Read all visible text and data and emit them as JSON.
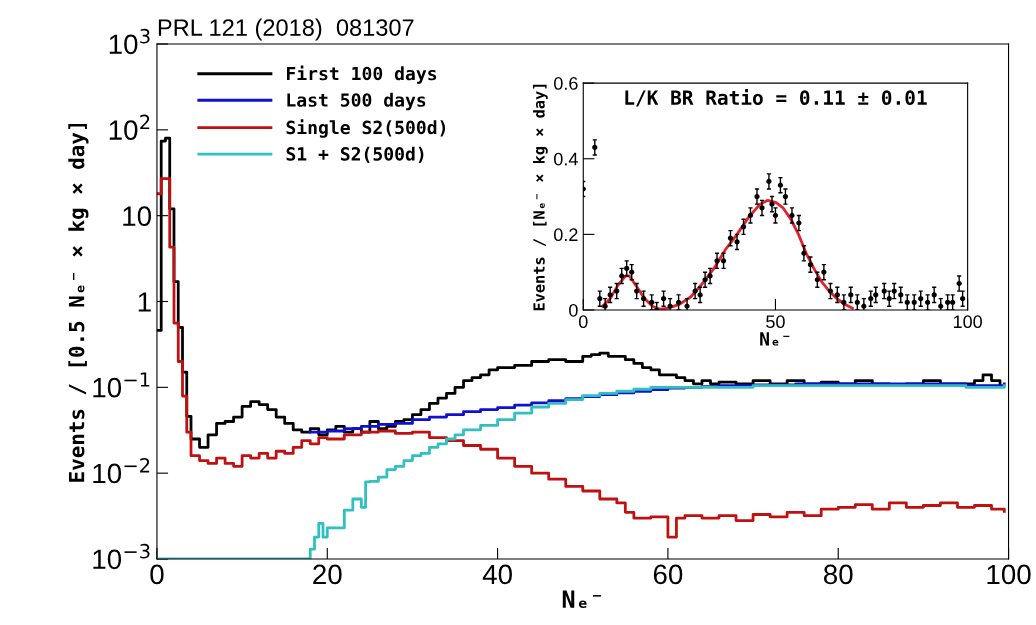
{
  "chart_data": [
    {
      "type": "step",
      "title": "PRL 121 (2018)  081307",
      "xlabel": "Nₑ⁻",
      "ylabel": "Events / [0.5 Nₑ⁻ × kg × day]",
      "log": "y",
      "legend": "top left",
      "grid": false,
      "xlim": [
        0,
        100
      ],
      "xticks": [
        0,
        20,
        40,
        60,
        80,
        100
      ],
      "ylim": [
        0.001,
        1000
      ],
      "yticks": [
        {
          "value": 0.001,
          "label": "10$^{−3}$"
        },
        {
          "value": 0.01,
          "label": "10$^{−2}$"
        },
        {
          "value": 0.1,
          "label": "10$^{−1}$"
        },
        1,
        10,
        {
          "value": 100,
          "label": "10$^{2}$"
        },
        {
          "value": 1000,
          "label": "10$^{3}$"
        }
      ],
      "series": [
        {
          "name": "First 100 days",
          "color": "#000000",
          "x": [
            0,
            0.5,
            1,
            1.5,
            2,
            2.5,
            3,
            3.5,
            4,
            5,
            6,
            7,
            8,
            9,
            10,
            11,
            12,
            13,
            14,
            15,
            16,
            17,
            18,
            19,
            20,
            21,
            22,
            23,
            24,
            25,
            26,
            27,
            28,
            29,
            30,
            31,
            32,
            33,
            34,
            35,
            36,
            37,
            38,
            39,
            40,
            42,
            44,
            46,
            48,
            50,
            51,
            52,
            53,
            54,
            55,
            56,
            57,
            58,
            59,
            60,
            61,
            62,
            63,
            64,
            65,
            66,
            68,
            70,
            72,
            74,
            76,
            78,
            80,
            82,
            84,
            86,
            88,
            90,
            92,
            94,
            96,
            97,
            98,
            99
          ],
          "values": [
            0.46,
            74,
            80,
            12,
            1.7,
            0.5,
            0.15,
            0.046,
            0.025,
            0.02,
            0.028,
            0.038,
            0.04,
            0.045,
            0.06,
            0.068,
            0.063,
            0.055,
            0.045,
            0.038,
            0.032,
            0.03,
            0.033,
            0.028,
            0.032,
            0.035,
            0.03,
            0.033,
            0.03,
            0.04,
            0.033,
            0.035,
            0.04,
            0.042,
            0.048,
            0.055,
            0.065,
            0.075,
            0.085,
            0.1,
            0.12,
            0.13,
            0.14,
            0.16,
            0.17,
            0.18,
            0.2,
            0.21,
            0.2,
            0.23,
            0.24,
            0.25,
            0.23,
            0.23,
            0.21,
            0.19,
            0.17,
            0.16,
            0.14,
            0.14,
            0.13,
            0.12,
            0.11,
            0.12,
            0.11,
            0.115,
            0.11,
            0.12,
            0.11,
            0.12,
            0.11,
            0.115,
            0.11,
            0.12,
            0.11,
            0.105,
            0.11,
            0.12,
            0.11,
            0.11,
            0.12,
            0.14,
            0.12,
            0.11
          ]
        },
        {
          "name": "Last 500 days",
          "color": "#1010d0",
          "x": [
            18,
            20,
            22,
            24,
            26,
            28,
            30,
            32,
            34,
            36,
            38,
            40,
            42,
            44,
            46,
            48,
            50,
            52,
            54,
            56,
            58,
            60,
            62,
            64,
            66,
            70,
            75,
            80,
            85,
            90,
            95,
            99.5
          ],
          "values": [
            0.03,
            0.031,
            0.033,
            0.035,
            0.037,
            0.038,
            0.042,
            0.045,
            0.048,
            0.052,
            0.055,
            0.058,
            0.062,
            0.066,
            0.07,
            0.074,
            0.078,
            0.082,
            0.086,
            0.09,
            0.094,
            0.098,
            0.1,
            0.102,
            0.105,
            0.107,
            0.11,
            0.11,
            0.11,
            0.11,
            0.105,
            0.11
          ]
        },
        {
          "name": "Single S2(500d)",
          "color": "#c01010",
          "x": [
            0,
            0.5,
            1,
            1.5,
            2,
            2.5,
            3,
            3.5,
            4,
            5,
            6,
            7,
            8,
            9,
            10,
            11,
            12,
            13,
            14,
            15,
            16,
            17,
            18,
            19,
            20,
            22,
            24,
            26,
            28,
            30,
            32,
            34,
            36,
            38,
            40,
            42,
            44,
            46,
            48,
            50,
            52,
            54,
            55,
            56,
            58,
            60,
            61,
            62,
            64,
            66,
            68,
            70,
            72,
            74,
            76,
            78,
            80,
            82,
            84,
            86,
            88,
            90,
            92,
            94,
            96,
            98,
            99.5
          ],
          "values": [
            18,
            27,
            27,
            4.3,
            0.56,
            0.2,
            0.079,
            0.03,
            0.016,
            0.014,
            0.013,
            0.015,
            0.013,
            0.012,
            0.016,
            0.015,
            0.017,
            0.015,
            0.018,
            0.017,
            0.02,
            0.024,
            0.022,
            0.026,
            0.025,
            0.028,
            0.03,
            0.031,
            0.029,
            0.03,
            0.026,
            0.024,
            0.021,
            0.019,
            0.015,
            0.012,
            0.01,
            0.0085,
            0.007,
            0.0062,
            0.005,
            0.0045,
            0.0035,
            0.003,
            0.0031,
            0.0018,
            0.003,
            0.0032,
            0.003,
            0.0032,
            0.0028,
            0.0033,
            0.0031,
            0.0035,
            0.0032,
            0.0038,
            0.004,
            0.0043,
            0.0038,
            0.0045,
            0.004,
            0.0042,
            0.0045,
            0.004,
            0.0042,
            0.0038,
            0.0036
          ]
        },
        {
          "name": "S1 + S2(500d)",
          "color": "#30c0c0",
          "x": [
            0,
            18,
            18.5,
            19,
            19.5,
            20,
            21,
            22,
            23,
            24,
            24.5,
            25,
            26,
            27,
            28,
            29,
            30,
            31,
            32,
            33,
            34,
            35,
            36,
            38,
            40,
            42,
            44,
            46,
            48,
            50,
            52,
            54,
            56,
            58,
            60,
            65,
            70,
            75,
            80,
            85,
            90,
            95,
            99.5
          ],
          "values": [
            0.001,
            0.0013,
            0.0018,
            0.0026,
            0.0018,
            0.0023,
            0.0023,
            0.0037,
            0.005,
            0.004,
            0.0079,
            0.008,
            0.009,
            0.011,
            0.012,
            0.014,
            0.016,
            0.017,
            0.02,
            0.022,
            0.025,
            0.028,
            0.032,
            0.036,
            0.042,
            0.05,
            0.059,
            0.065,
            0.072,
            0.08,
            0.085,
            0.09,
            0.095,
            0.1,
            0.1,
            0.1,
            0.105,
            0.105,
            0.105,
            0.105,
            0.105,
            0.1,
            0.105
          ]
        }
      ]
    },
    {
      "type": "scatter",
      "xlabel": "Nₑ⁻",
      "ylabel": "Events / [Nₑ⁻ × kg × day]",
      "annotations": [
        "L/K BR Ratio = 0.11 ± 0.01"
      ],
      "grid": false,
      "xlim": [
        0,
        100
      ],
      "xticks": [
        0,
        50,
        100
      ],
      "ylim": [
        0,
        0.6
      ],
      "yticks": [
        0,
        0.2,
        0.4,
        0.6
      ],
      "series": [
        {
          "color": "#000000",
          "marker": "circle",
          "x": [
            0,
            3,
            4.3,
            5.7,
            7,
            8.7,
            10,
            11.3,
            12.6,
            13.9,
            15.7,
            17.8,
            19.1,
            20.9,
            22.6,
            24.8,
            27,
            29.1,
            30.4,
            31.7,
            33,
            34.8,
            36.5,
            38.3,
            40,
            41.7,
            43.5,
            45.2,
            46.5,
            48.3,
            49.1,
            50,
            51.3,
            52.6,
            54.3,
            56.1,
            57.4,
            59.1,
            60.9,
            62.6,
            64.3,
            66.1,
            67.8,
            69.6,
            71.3,
            73,
            74.8,
            76.1,
            78.3,
            79.6,
            80.9,
            82.6,
            84.3,
            86.1,
            87.8,
            89.6,
            91.3,
            93,
            94.8,
            96.1,
            97.8,
            98.7
          ],
          "values": [
            0.32,
            0.43,
            0.03,
            0.01,
            0.04,
            0.05,
            0.09,
            0.11,
            0.1,
            0.05,
            0.03,
            0.02,
            0.0,
            0.03,
            0.01,
            0.02,
            0.01,
            0.05,
            0.04,
            0.08,
            0.09,
            0.13,
            0.13,
            0.19,
            0.18,
            0.22,
            0.25,
            0.3,
            0.27,
            0.34,
            0.28,
            0.25,
            0.33,
            0.3,
            0.25,
            0.23,
            0.15,
            0.12,
            0.08,
            0.1,
            0.05,
            0.04,
            0.02,
            0.04,
            0.02,
            0.01,
            0.03,
            0.04,
            0.05,
            0.03,
            0.05,
            0.04,
            0.02,
            0.02,
            0.03,
            0.02,
            0.04,
            0.01,
            0.02,
            0.02,
            0.07,
            0.03
          ],
          "errors": [
            0.02,
            0.02,
            0.02,
            0.02,
            0.02,
            0.02,
            0.02,
            0.02,
            0.02,
            0.02,
            0.02,
            0.02,
            0.02,
            0.02,
            0.02,
            0.02,
            0.02,
            0.02,
            0.02,
            0.02,
            0.02,
            0.02,
            0.02,
            0.02,
            0.02,
            0.02,
            0.02,
            0.02,
            0.02,
            0.02,
            0.02,
            0.02,
            0.02,
            0.02,
            0.02,
            0.02,
            0.02,
            0.02,
            0.02,
            0.02,
            0.02,
            0.02,
            0.02,
            0.02,
            0.02,
            0.02,
            0.02,
            0.02,
            0.02,
            0.02,
            0.02,
            0.02,
            0.02,
            0.02,
            0.02,
            0.02,
            0.02,
            0.02,
            0.02,
            0.02,
            0.02,
            0.02
          ]
        },
        {
          "type": "line",
          "color": "#e8202a",
          "x": [
            5,
            7,
            9,
            11,
            12,
            14,
            16,
            18,
            20,
            22,
            25,
            28,
            31,
            34,
            37,
            40,
            43,
            46,
            48,
            50,
            52,
            54,
            56,
            58,
            60,
            62,
            64,
            66,
            68,
            70
          ],
          "values": [
            0.01,
            0.03,
            0.065,
            0.09,
            0.09,
            0.06,
            0.03,
            0.01,
            0.002,
            0.005,
            0.015,
            0.035,
            0.07,
            0.11,
            0.16,
            0.2,
            0.245,
            0.28,
            0.29,
            0.285,
            0.27,
            0.24,
            0.2,
            0.15,
            0.11,
            0.075,
            0.05,
            0.03,
            0.015,
            0.005
          ]
        }
      ]
    }
  ]
}
